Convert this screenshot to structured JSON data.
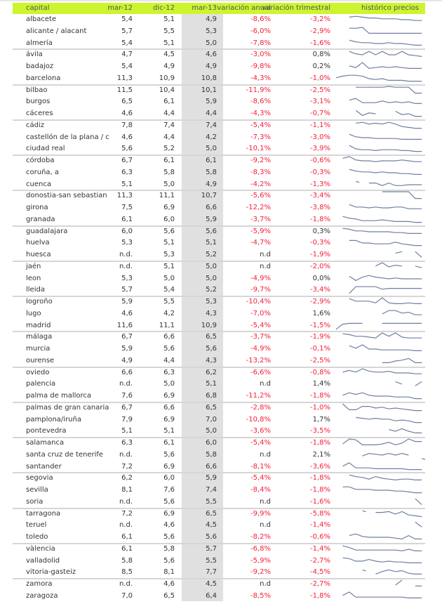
{
  "colors": {
    "header_bg": "#ccf530",
    "negative": "#f5203a",
    "neutral": "#333333",
    "sparkline": "#6f7f9f",
    "highlight_column": "#e0e0e0"
  },
  "header": {
    "capital": "capital",
    "mar12": "mar-12",
    "dic12": "dic-12",
    "mar13": "mar-13",
    "anual": "variación anual",
    "trimestral": "variación trimestral",
    "historico": "histórico precios"
  },
  "rows": [
    {
      "capital": "albacete",
      "mar12": "5,4",
      "dic12": "5,1",
      "mar13": "4,9",
      "anual": "-8,6%",
      "trimestral": "-3,2%",
      "spark": [
        null,
        null,
        8,
        9,
        8,
        7,
        7,
        6,
        6,
        6,
        5,
        5,
        4,
        4
      ]
    },
    {
      "capital": "alicante / alacant",
      "mar12": "5,7",
      "dic12": "5,5",
      "mar13": "5,3",
      "anual": "-6,0%",
      "trimestral": "-2,9%",
      "spark": [
        null,
        null,
        9,
        9,
        10,
        3,
        3,
        3,
        3,
        3,
        3,
        3,
        3,
        3
      ]
    },
    {
      "capital": "almería",
      "mar12": "5,4",
      "dic12": "5,1",
      "mar13": "5,0",
      "anual": "-7,8%",
      "trimestral": "-1,6%",
      "spark": [
        null,
        null,
        9,
        7,
        6,
        6,
        5,
        5,
        6,
        5,
        5,
        4,
        3,
        3
      ]
    },
    {
      "capital": "ávila",
      "mar12": "4,7",
      "dic12": "4,5",
      "mar13": "4,6",
      "anual": "-3,0%",
      "trimestral": "0,8%",
      "spark": [
        null,
        null,
        9,
        6,
        5,
        9,
        5,
        9,
        5,
        5,
        9,
        5,
        4,
        3
      ]
    },
    {
      "capital": "badajoz",
      "mar12": "5,4",
      "dic12": "4,9",
      "mar13": "4,9",
      "anual": "-9,8%",
      "trimestral": "0,2%",
      "spark": [
        null,
        null,
        6,
        4,
        10,
        3,
        4,
        5,
        4,
        5,
        4,
        3,
        3,
        3
      ]
    },
    {
      "capital": "barcelona",
      "mar12": "11,3",
      "dic12": "10,9",
      "mar13": "10,8",
      "anual": "-4,3%",
      "trimestral": "-1,0%",
      "spark": [
        6,
        8,
        9,
        9,
        8,
        5,
        4,
        5,
        3,
        3,
        3,
        2,
        2,
        2
      ]
    },
    {
      "capital": "bilbao",
      "mar12": "11,5",
      "dic12": "10,4",
      "mar13": "10,1",
      "anual": "-11,9%",
      "trimestral": "-2,5%",
      "spark": [
        null,
        null,
        null,
        9,
        9,
        9,
        9,
        9,
        10,
        9,
        9,
        9,
        2,
        2
      ]
    },
    {
      "capital": "burgos",
      "mar12": "6,5",
      "dic12": "6,1",
      "mar13": "5,9",
      "anual": "-8,6%",
      "trimestral": "-3,1%",
      "spark": [
        null,
        null,
        7,
        9,
        4,
        4,
        4,
        6,
        4,
        5,
        4,
        5,
        3,
        3
      ]
    },
    {
      "capital": "cáceres",
      "mar12": "4,6",
      "dic12": "4,4",
      "mar13": "4,4",
      "anual": "-4,3%",
      "trimestral": "-0,7%",
      "spark": [
        null,
        null,
        null,
        9,
        3,
        6,
        5,
        null,
        null,
        8,
        4,
        5,
        2,
        2
      ]
    },
    {
      "capital": "cádiz",
      "mar12": "7,8",
      "dic12": "7,4",
      "mar13": "7,4",
      "anual": "-5,4%",
      "trimestral": "-1,1%",
      "spark": [
        null,
        null,
        null,
        8,
        9,
        7,
        8,
        7,
        9,
        7,
        4,
        3,
        2,
        2
      ]
    },
    {
      "capital": "castellón de la plana / c",
      "mar12": "4,6",
      "dic12": "4,4",
      "mar13": "4,2",
      "anual": "-7,3%",
      "trimestral": "-3,0%",
      "spark": [
        null,
        null,
        9,
        6,
        5,
        5,
        4,
        4,
        4,
        4,
        3,
        3,
        3,
        3
      ]
    },
    {
      "capital": "ciudad real",
      "mar12": "5,6",
      "dic12": "5,2",
      "mar13": "5,0",
      "anual": "-10,1%",
      "trimestral": "-3,9%",
      "spark": [
        null,
        null,
        9,
        5,
        4,
        4,
        3,
        4,
        4,
        4,
        3,
        3,
        2,
        2
      ]
    },
    {
      "capital": "córdoba",
      "mar12": "6,7",
      "dic12": "6,1",
      "mar13": "6,1",
      "anual": "-9,2%",
      "trimestral": "-0,6%",
      "spark": [
        null,
        8,
        10,
        6,
        5,
        5,
        4,
        5,
        5,
        5,
        6,
        5,
        4,
        4
      ]
    },
    {
      "capital": "coruña, a",
      "mar12": "6,3",
      "dic12": "5,8",
      "mar13": "5,8",
      "anual": "-8,3%",
      "trimestral": "-0,3%",
      "spark": [
        null,
        null,
        9,
        7,
        6,
        6,
        5,
        6,
        5,
        5,
        4,
        4,
        3,
        3
      ]
    },
    {
      "capital": "cuenca",
      "mar12": "5,1",
      "dic12": "5,0",
      "mar13": "4,9",
      "anual": "-4,2%",
      "trimestral": "-1,3%",
      "spark": [
        null,
        null,
        null,
        9,
        null,
        7,
        7,
        4,
        7,
        4,
        4,
        5,
        5,
        5
      ]
    },
    {
      "capital": "donostia-san sebastian",
      "mar12": "11,3",
      "dic12": "11,1",
      "mar13": "10,7",
      "anual": "-5,6%",
      "trimestral": "-3,4%",
      "spark": [
        null,
        null,
        null,
        null,
        null,
        null,
        null,
        10,
        10,
        10,
        10,
        10,
        2,
        2
      ]
    },
    {
      "capital": "girona",
      "mar12": "7,5",
      "dic12": "6,9",
      "mar13": "6,6",
      "anual": "-12,2%",
      "trimestral": "-3,8%",
      "spark": [
        null,
        null,
        9,
        6,
        6,
        5,
        6,
        5,
        5,
        6,
        6,
        4,
        4,
        4
      ]
    },
    {
      "capital": "granada",
      "mar12": "6,1",
      "dic12": "6,0",
      "mar13": "5,9",
      "anual": "-3,7%",
      "trimestral": "-1,8%",
      "spark": [
        null,
        9,
        7,
        6,
        4,
        4,
        4,
        5,
        4,
        3,
        3,
        3,
        2,
        2
      ]
    },
    {
      "capital": "guadalajara",
      "mar12": "6,0",
      "dic12": "5,6",
      "mar13": "5,6",
      "anual": "-5,9%",
      "trimestral": "0,3%",
      "spark": [
        null,
        9,
        8,
        6,
        6,
        5,
        5,
        5,
        5,
        4,
        4,
        3,
        3,
        3
      ]
    },
    {
      "capital": "huelva",
      "mar12": "5,3",
      "dic12": "5,1",
      "mar13": "5,1",
      "anual": "-4,7%",
      "trimestral": "-0,3%",
      "spark": [
        null,
        null,
        8,
        8,
        5,
        5,
        4,
        4,
        4,
        6,
        4,
        3,
        2,
        2
      ]
    },
    {
      "capital": "huesca",
      "mar12": "n.d.",
      "dic12": "5,3",
      "mar13": "5,2",
      "anual": "n.d",
      "trimestral": "-1,9%",
      "spark": [
        null,
        null,
        null,
        null,
        null,
        null,
        null,
        null,
        null,
        7,
        9,
        null,
        9,
        2
      ]
    },
    {
      "capital": "jaén",
      "mar12": "n.d.",
      "dic12": "5,1",
      "mar13": "5,0",
      "anual": "n.d",
      "trimestral": "-2,0%",
      "spark": [
        null,
        null,
        null,
        null,
        null,
        null,
        6,
        10,
        5,
        7,
        6,
        null,
        6,
        4
      ]
    },
    {
      "capital": "leon",
      "mar12": "5,3",
      "dic12": "5,0",
      "mar13": "5,0",
      "anual": "-4,9%",
      "trimestral": "0,0%",
      "spark": [
        null,
        null,
        8,
        3,
        7,
        9,
        7,
        6,
        5,
        6,
        5,
        5,
        5,
        5
      ]
    },
    {
      "capital": "lleida",
      "mar12": "5,7",
      "dic12": "5,4",
      "mar13": "5,2",
      "anual": "-9,7%",
      "trimestral": "-3,4%",
      "spark": [
        null,
        null,
        1,
        9,
        9,
        9,
        9,
        6,
        7,
        7,
        7,
        7,
        7,
        7
      ]
    },
    {
      "capital": "logroño",
      "mar12": "5,9",
      "dic12": "5,5",
      "mar13": "5,3",
      "anual": "-10,4%",
      "trimestral": "-2,9%",
      "spark": [
        null,
        null,
        9,
        6,
        6,
        6,
        4,
        10,
        4,
        3,
        3,
        4,
        3,
        3
      ]
    },
    {
      "capital": "lugo",
      "mar12": "4,6",
      "dic12": "4,2",
      "mar13": "4,3",
      "anual": "-7,0%",
      "trimestral": "1,6%",
      "spark": [
        null,
        null,
        null,
        null,
        null,
        null,
        null,
        5,
        9,
        9,
        6,
        7,
        4,
        4
      ]
    },
    {
      "capital": "madrid",
      "mar12": "11,6",
      "dic12": "11,1",
      "mar13": "10,9",
      "anual": "-5,4%",
      "trimestral": "-1,5%",
      "spark": [
        1,
        7,
        8,
        8,
        8,
        null,
        null,
        8,
        8,
        8,
        8,
        8,
        8,
        8
      ]
    },
    {
      "capital": "málaga",
      "mar12": "6,7",
      "dic12": "6,6",
      "mar13": "6,5",
      "anual": "-3,7%",
      "trimestral": "-1,9%",
      "spark": [
        null,
        9,
        8,
        6,
        6,
        5,
        4,
        10,
        6,
        10,
        5,
        4,
        4,
        4
      ]
    },
    {
      "capital": "murcia",
      "mar12": "5,9",
      "dic12": "5,6",
      "mar13": "5,6",
      "anual": "-4,9%",
      "trimestral": "-0,1%",
      "spark": [
        null,
        null,
        9,
        6,
        10,
        5,
        5,
        4,
        4,
        4,
        4,
        4,
        3,
        3
      ]
    },
    {
      "capital": "ourense",
      "mar12": "4,9",
      "dic12": "4,4",
      "mar13": "4,3",
      "anual": "-13,2%",
      "trimestral": "-2,5%",
      "spark": [
        null,
        null,
        null,
        null,
        null,
        null,
        null,
        3,
        3,
        5,
        6,
        8,
        3,
        3
      ]
    },
    {
      "capital": "oviedo",
      "mar12": "6,6",
      "dic12": "6,3",
      "mar13": "6,2",
      "anual": "-6,6%",
      "trimestral": "-0,8%",
      "spark": [
        null,
        6,
        8,
        6,
        10,
        7,
        6,
        6,
        7,
        5,
        5,
        5,
        4,
        4
      ]
    },
    {
      "capital": "palencia",
      "mar12": "n.d.",
      "dic12": "5,0",
      "mar13": "5,1",
      "anual": "n.d",
      "trimestral": "1,4%",
      "spark": [
        null,
        null,
        null,
        null,
        null,
        null,
        null,
        null,
        null,
        8,
        5,
        null,
        3,
        8
      ]
    },
    {
      "capital": "palma de mallorca",
      "mar12": "7,6",
      "dic12": "6,9",
      "mar13": "6,8",
      "anual": "-11,2%",
      "trimestral": "-1,8%",
      "spark": [
        null,
        6,
        9,
        7,
        9,
        6,
        5,
        5,
        5,
        4,
        4,
        4,
        2,
        2
      ]
    },
    {
      "capital": "palmas de gran canaria",
      "mar12": "6,7",
      "dic12": "6,6",
      "mar13": "6,5",
      "anual": "-2,8%",
      "trimestral": "-1,0%",
      "spark": [
        null,
        10,
        3,
        3,
        7,
        7,
        5,
        6,
        4,
        5,
        4,
        3,
        2,
        2
      ]
    },
    {
      "capital": "pamplona/iruña",
      "mar12": "7,9",
      "dic12": "6,9",
      "mar13": "7,0",
      "anual": "-10,8%",
      "trimestral": "1,7%",
      "spark": [
        null,
        null,
        null,
        8,
        7,
        6,
        7,
        6,
        6,
        4,
        5,
        4,
        2,
        2
      ]
    },
    {
      "capital": "pontevedra",
      "mar12": "5,1",
      "dic12": "5,1",
      "mar13": "5,0",
      "anual": "-3,6%",
      "trimestral": "-3,5%",
      "spark": [
        null,
        null,
        null,
        null,
        null,
        null,
        null,
        null,
        7,
        5,
        8,
        5,
        3,
        3
      ]
    },
    {
      "capital": "salamanca",
      "mar12": "6,3",
      "dic12": "6,1",
      "mar13": "6,0",
      "anual": "-5,4%",
      "trimestral": "-1,8%",
      "spark": [
        null,
        4,
        10,
        9,
        3,
        3,
        3,
        4,
        6,
        3,
        5,
        10,
        7,
        7
      ]
    },
    {
      "capital": "santa cruz de tenerife",
      "mar12": "n.d.",
      "dic12": "5,6",
      "mar13": "5,8",
      "anual": "n.d",
      "trimestral": "2,1%",
      "spark": [
        null,
        null,
        null,
        null,
        4,
        7,
        6,
        5,
        7,
        5,
        7,
        5,
        null,
        1
      ]
    },
    {
      "capital": "santander",
      "mar12": "7,2",
      "dic12": "6,9",
      "mar13": "6,6",
      "anual": "-8,1%",
      "trimestral": "-3,6%",
      "spark": [
        null,
        6,
        10,
        4,
        4,
        4,
        3,
        3,
        3,
        3,
        3,
        2,
        2,
        2
      ]
    },
    {
      "capital": "segovia",
      "mar12": "6,2",
      "dic12": "6,0",
      "mar13": "5,9",
      "anual": "-5,4%",
      "trimestral": "-1,8%",
      "spark": [
        null,
        null,
        9,
        7,
        6,
        4,
        7,
        5,
        4,
        3,
        4,
        4,
        3,
        3
      ]
    },
    {
      "capital": "sevilla",
      "mar12": "8,1",
      "dic12": "7,6",
      "mar13": "7,4",
      "anual": "-8,4%",
      "trimestral": "-1,8%",
      "spark": [
        null,
        9,
        9,
        6,
        6,
        6,
        5,
        5,
        5,
        4,
        4,
        3,
        2,
        2
      ]
    },
    {
      "capital": "soria",
      "mar12": "n.d.",
      "dic12": "5,6",
      "mar13": "5,5",
      "anual": "n.d",
      "trimestral": "-1,6%",
      "spark": [
        null,
        null,
        null,
        null,
        null,
        null,
        null,
        null,
        null,
        null,
        null,
        null,
        9,
        2
      ]
    },
    {
      "capital": "tarragona",
      "mar12": "7,2",
      "dic12": "6,9",
      "mar13": "6,5",
      "anual": "-9,9%",
      "trimestral": "-5,8%",
      "spark": [
        null,
        null,
        null,
        null,
        9,
        null,
        7,
        7,
        8,
        5,
        8,
        4,
        3,
        2
      ]
    },
    {
      "capital": "teruel",
      "mar12": "n.d.",
      "dic12": "4,6",
      "mar13": "4,5",
      "anual": "n.d",
      "trimestral": "-1,4%",
      "spark": [
        null,
        null,
        null,
        null,
        null,
        null,
        null,
        null,
        null,
        null,
        null,
        null,
        9,
        3
      ]
    },
    {
      "capital": "toledo",
      "mar12": "6,1",
      "dic12": "5,6",
      "mar13": "5,6",
      "anual": "-8,2%",
      "trimestral": "-0,6%",
      "spark": [
        null,
        null,
        7,
        9,
        6,
        5,
        5,
        5,
        5,
        4,
        3,
        7,
        3,
        3
      ]
    },
    {
      "capital": "vàlencia",
      "mar12": "6,1",
      "dic12": "5,8",
      "mar13": "5,7",
      "anual": "-6,8%",
      "trimestral": "-1,4%",
      "spark": [
        null,
        9,
        7,
        4,
        4,
        4,
        4,
        4,
        4,
        4,
        3,
        5,
        3,
        3
      ]
    },
    {
      "capital": "valladolid",
      "mar12": "5,8",
      "dic12": "5,6",
      "mar13": "5,5",
      "anual": "-5,9%",
      "trimestral": "-2,7%",
      "spark": [
        null,
        9,
        8,
        5,
        5,
        7,
        5,
        4,
        5,
        4,
        4,
        3,
        3,
        3
      ]
    },
    {
      "capital": "vitoria-gasteiz",
      "mar12": "8,5",
      "dic12": "8,1",
      "mar13": "7,7",
      "anual": "-9,2%",
      "trimestral": "-4,5%",
      "spark": [
        null,
        null,
        null,
        null,
        8,
        null,
        3,
        6,
        8,
        6,
        7,
        4,
        3,
        3
      ]
    },
    {
      "capital": "zamora",
      "mar12": "n.d.",
      "dic12": "4,6",
      "mar13": "4,5",
      "anual": "n.d",
      "trimestral": "-2,7%",
      "spark": [
        null,
        null,
        null,
        null,
        null,
        null,
        null,
        null,
        null,
        4,
        10,
        null,
        3,
        3
      ]
    },
    {
      "capital": "zaragoza",
      "mar12": "7,0",
      "dic12": "6,5",
      "mar13": "6,4",
      "anual": "-8,5%",
      "trimestral": "-1,8%",
      "spark": [
        null,
        6,
        10,
        4,
        4,
        4,
        4,
        4,
        4,
        4,
        4,
        3,
        3,
        3
      ]
    }
  ]
}
